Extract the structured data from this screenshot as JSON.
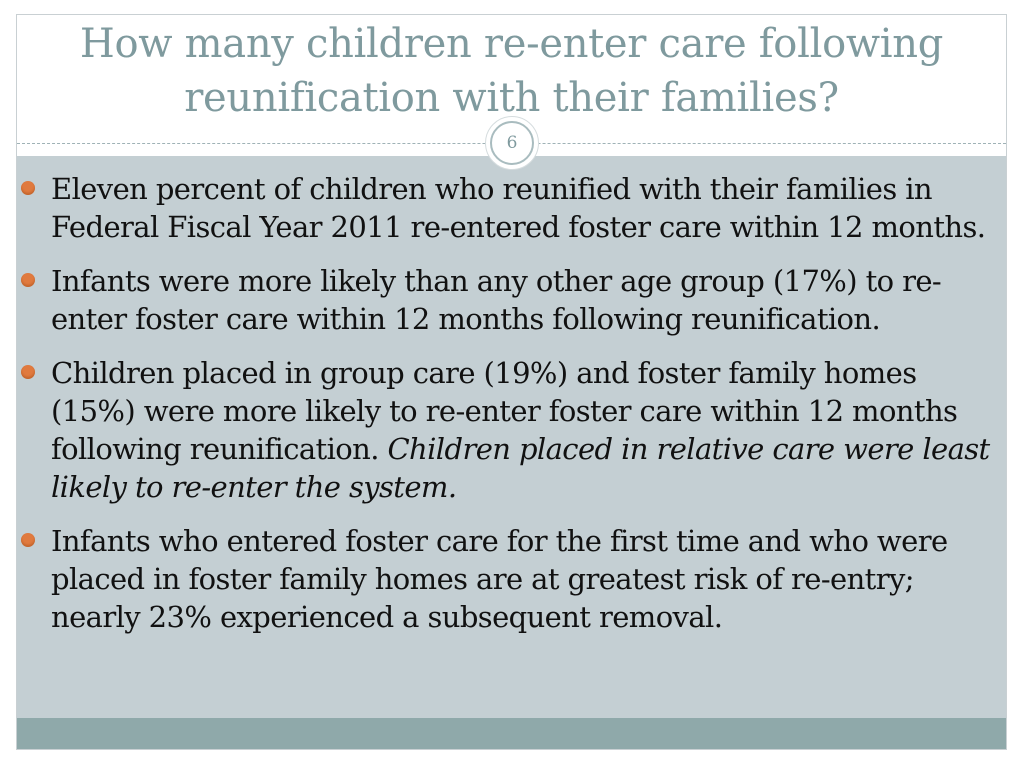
{
  "slide": {
    "title": "How many children re-enter care following reunification with their families?",
    "slide_number": "6",
    "bullets": [
      {
        "text": "Eleven percent of children who reunified with their families in Federal Fiscal Year 2011 re-entered foster care within 12 months.",
        "italic": ""
      },
      {
        "text": "Infants were more likely than any other age group (17%) to re-enter foster care within 12 months following reunification.",
        "italic": ""
      },
      {
        "text": "Children placed in group care (19%) and foster family homes (15%) were more likely to re-enter foster care within 12 months following reunification. ",
        "italic": "Children placed in relative care were least likely to re-enter the system."
      },
      {
        "text": "Infants  who entered foster care for the first time and who were placed in foster family homes are at greatest risk of re-entry;  nearly 23% experienced a subsequent removal.",
        "italic": ""
      }
    ]
  },
  "colors": {
    "title": "#7f9a9e",
    "content_background": "#c4cfd3",
    "footer_band": "#8fa9aa",
    "bullet": "#e07a3e"
  },
  "icons": {
    "bullet": "orange-circle-bullet-icon"
  }
}
